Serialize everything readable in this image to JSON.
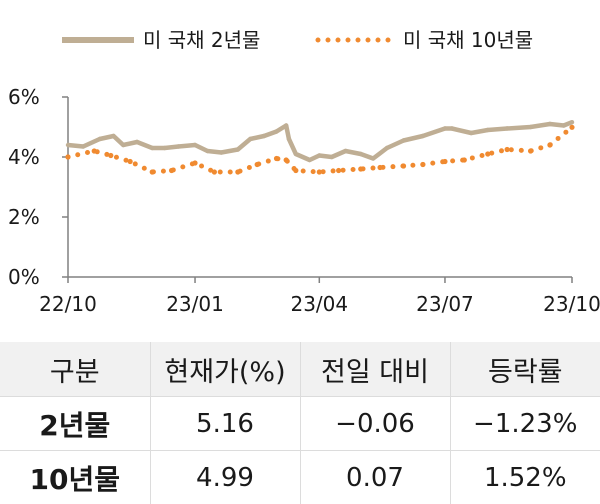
{
  "chart_data": {
    "type": "line",
    "ylim": [
      0,
      6
    ],
    "y_ticks": [
      "0%",
      "2%",
      "4%",
      "6%"
    ],
    "y_tick_values": [
      0,
      2,
      4,
      6
    ],
    "x_tick_labels": [
      "22/10",
      "23/01",
      "23/04",
      "23/07",
      "23/10"
    ],
    "x_tick_dates": [
      "2022-10-01",
      "2023-01-01",
      "2023-04-01",
      "2023-07-01",
      "2023-10-01"
    ],
    "legend_position": "top",
    "series": [
      {
        "name": "미 국채 2년물",
        "color": "#bfae94",
        "style": "solid",
        "x": [
          "2022-10-01",
          "2022-10-12",
          "2022-10-24",
          "2022-11-03",
          "2022-11-10",
          "2022-11-20",
          "2022-12-01",
          "2022-12-10",
          "2022-12-20",
          "2023-01-01",
          "2023-01-10",
          "2023-01-20",
          "2023-02-01",
          "2023-02-10",
          "2023-02-20",
          "2023-03-01",
          "2023-03-08",
          "2023-03-10",
          "2023-03-15",
          "2023-03-25",
          "2023-04-01",
          "2023-04-10",
          "2023-04-20",
          "2023-05-01",
          "2023-05-10",
          "2023-05-20",
          "2023-06-01",
          "2023-06-15",
          "2023-07-01",
          "2023-07-06",
          "2023-07-20",
          "2023-08-01",
          "2023-08-15",
          "2023-09-01",
          "2023-09-15",
          "2023-09-25",
          "2023-10-01"
        ],
        "y": [
          4.4,
          4.35,
          4.6,
          4.7,
          4.4,
          4.5,
          4.3,
          4.3,
          4.35,
          4.4,
          4.2,
          4.15,
          4.25,
          4.6,
          4.7,
          4.85,
          5.05,
          4.6,
          4.1,
          3.9,
          4.05,
          4.0,
          4.2,
          4.1,
          3.95,
          4.3,
          4.55,
          4.7,
          4.95,
          4.95,
          4.8,
          4.9,
          4.95,
          5.0,
          5.1,
          5.05,
          5.16
        ]
      },
      {
        "name": "미 국채 10년물",
        "color": "#f08a30",
        "style": "dotted",
        "x": [
          "2022-10-01",
          "2022-10-20",
          "2022-11-01",
          "2022-11-15",
          "2022-12-01",
          "2022-12-15",
          "2023-01-01",
          "2023-01-15",
          "2023-02-01",
          "2023-02-15",
          "2023-03-01",
          "2023-03-08",
          "2023-03-15",
          "2023-04-01",
          "2023-04-15",
          "2023-05-01",
          "2023-05-15",
          "2023-06-01",
          "2023-06-15",
          "2023-07-01",
          "2023-07-15",
          "2023-08-01",
          "2023-08-15",
          "2023-09-01",
          "2023-09-15",
          "2023-10-01"
        ],
        "y": [
          4.0,
          4.2,
          4.05,
          3.85,
          3.5,
          3.55,
          3.8,
          3.5,
          3.5,
          3.75,
          3.95,
          3.9,
          3.55,
          3.5,
          3.55,
          3.6,
          3.65,
          3.7,
          3.75,
          3.85,
          3.9,
          4.1,
          4.25,
          4.2,
          4.4,
          4.99
        ]
      }
    ]
  },
  "table": {
    "headers": [
      "구분",
      "현재가(%)",
      "전일 대비",
      "등락률"
    ],
    "rows": [
      {
        "label": "2년물",
        "price": "5.16",
        "change": "−0.06",
        "rate": "−1.23%"
      },
      {
        "label": "10년물",
        "price": "4.99",
        "change": "0.07",
        "rate": "1.52%"
      }
    ]
  }
}
